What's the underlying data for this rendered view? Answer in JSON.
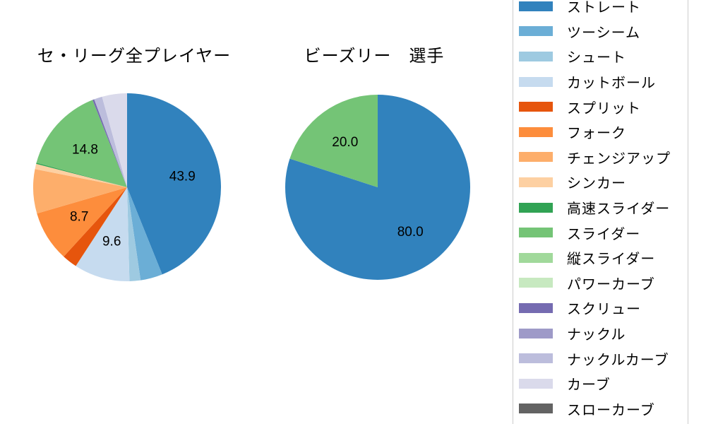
{
  "chart_data": [
    {
      "type": "pie",
      "title": "セ・リーグ全プレイヤー",
      "start_angle": "top",
      "direction": "clockwise",
      "value_label_min_pct": 8,
      "slices": [
        {
          "label": "ストレート",
          "value": 43.9,
          "display": "43.9",
          "color": "#3182bd"
        },
        {
          "label": "ツーシーム",
          "value": 3.8,
          "display": null,
          "color": "#6baed6",
          "approx": true
        },
        {
          "label": "シュート",
          "value": 1.9,
          "display": null,
          "color": "#9ecae1",
          "approx": true
        },
        {
          "label": "カットボール",
          "value": 9.6,
          "display": "9.6",
          "color": "#c6dbef"
        },
        {
          "label": "スプリット",
          "value": 2.6,
          "display": null,
          "color": "#e6550d",
          "approx": true
        },
        {
          "label": "フォーク",
          "value": 8.7,
          "display": "8.7",
          "color": "#fd8d3c"
        },
        {
          "label": "チェンジアップ",
          "value": 7.6,
          "display": null,
          "color": "#fdae6b",
          "approx": true
        },
        {
          "label": "シンカー",
          "value": 0.9,
          "display": null,
          "color": "#fdd0a2",
          "approx": true
        },
        {
          "label": "高速スライダー",
          "value": 0.2,
          "display": null,
          "color": "#31a354",
          "approx": true
        },
        {
          "label": "スライダー",
          "value": 14.8,
          "display": "14.8",
          "color": "#74c476"
        },
        {
          "label": "スクリュー",
          "value": 0.3,
          "display": null,
          "color": "#756bb1",
          "approx": true
        },
        {
          "label": "ナックルカーブ",
          "value": 1.4,
          "display": null,
          "color": "#bcbddc",
          "approx": true
        },
        {
          "label": "カーブ",
          "value": 4.3,
          "display": null,
          "color": "#dadaeb",
          "approx": true
        }
      ]
    },
    {
      "type": "pie",
      "title": "ビーズリー　選手",
      "start_angle": "top",
      "direction": "clockwise",
      "value_label_min_pct": 8,
      "slices": [
        {
          "label": "ストレート",
          "value": 80.0,
          "display": "80.0",
          "color": "#3182bd"
        },
        {
          "label": "スライダー",
          "value": 20.0,
          "display": "20.0",
          "color": "#74c476"
        }
      ]
    }
  ],
  "legend": {
    "border_color": "#cccccc",
    "items": [
      {
        "label": "ストレート",
        "color": "#3182bd"
      },
      {
        "label": "ツーシーム",
        "color": "#6baed6"
      },
      {
        "label": "シュート",
        "color": "#9ecae1"
      },
      {
        "label": "カットボール",
        "color": "#c6dbef"
      },
      {
        "label": "スプリット",
        "color": "#e6550d"
      },
      {
        "label": "フォーク",
        "color": "#fd8d3c"
      },
      {
        "label": "チェンジアップ",
        "color": "#fdae6b"
      },
      {
        "label": "シンカー",
        "color": "#fdd0a2"
      },
      {
        "label": "高速スライダー",
        "color": "#31a354"
      },
      {
        "label": "スライダー",
        "color": "#74c476"
      },
      {
        "label": "縦スライダー",
        "color": "#a1d99b"
      },
      {
        "label": "パワーカーブ",
        "color": "#c7e9c0"
      },
      {
        "label": "スクリュー",
        "color": "#756bb1"
      },
      {
        "label": "ナックル",
        "color": "#9e9ac8"
      },
      {
        "label": "ナックルカーブ",
        "color": "#bcbddc"
      },
      {
        "label": "カーブ",
        "color": "#dadaeb"
      },
      {
        "label": "スローカーブ",
        "color": "#636363"
      }
    ]
  }
}
